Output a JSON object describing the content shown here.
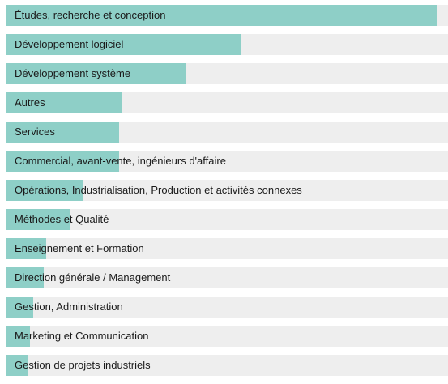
{
  "chart_data": {
    "type": "bar",
    "orientation": "horizontal",
    "categories": [
      "Études, recherche et conception",
      "Développement logiciel",
      "Développement système",
      "Autres",
      "Services",
      "Commercial, avant-vente, ingénieurs d'affaire",
      "Opérations, Industrialisation, Production et activités connexes",
      "Méthodes et Qualité",
      "Enseignement et Formation",
      "Direction générale / Management",
      "Gestion, Administration",
      "Marketing et Communication",
      "Gestion de projets industriels"
    ],
    "values": [
      97.5,
      53,
      40.5,
      26,
      25.5,
      25.5,
      17.5,
      14.5,
      9,
      8.5,
      6,
      5.3,
      5
    ],
    "xlim": [
      0,
      100
    ],
    "grid": false,
    "legend": "none"
  },
  "colors": {
    "bar": "#8ecfc7",
    "track": "#eeeeee",
    "label": "#1a1a1a"
  }
}
